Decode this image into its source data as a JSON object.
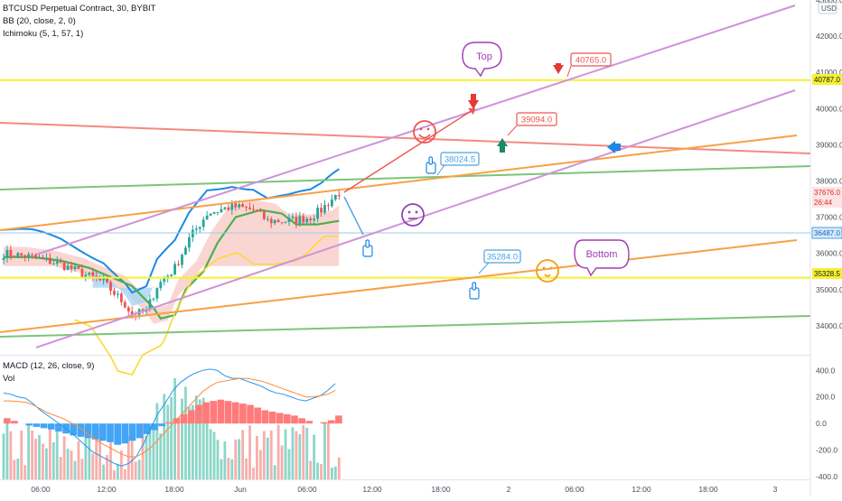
{
  "header": {
    "symbol": "BTCUSD Perpetual Contract, 30, BYBIT",
    "bb": "BB (20, close, 2, 0)",
    "ichimoku": "Ichimoku (5, 1, 57, 1)"
  },
  "lower": {
    "macd": "MACD (12, 26, close, 9)",
    "vol": "Vol"
  },
  "currency": "USD",
  "colors": {
    "up": "#26a69a",
    "down": "#ef5350",
    "bb": "#1e88e5",
    "baseline": "#4caf50",
    "lag": "#fdd835",
    "cloud_up": "#f8c4c0",
    "cloud_dn": "#a8d4f5",
    "channel": "#ce93d8",
    "support": "#f7a144",
    "resist": "#f28b82",
    "green": "#7cc47c",
    "yellow": "#f5f132",
    "blue": "#4aa3df",
    "macd_pos": "#ff7b7b",
    "macd_neg": "#42a5f5"
  },
  "chart_data": {
    "type": "candlestick",
    "ylim": [
      33200,
      43000
    ],
    "y_ticks": [
      "43000.0",
      "42000.0",
      "41000.0",
      "40000.0",
      "39000.0",
      "38000.0",
      "37000.0",
      "36000.0",
      "35000.0",
      "34000.0"
    ],
    "x_ticks": [
      "06:00",
      "12:00",
      "18:00",
      "Jun",
      "06:00",
      "12:00",
      "18:00",
      "2",
      "06:00",
      "12:00",
      "18:00",
      "3"
    ],
    "price_tags": [
      {
        "value": "40787.0",
        "style": "yellow"
      },
      {
        "value": "37676.0",
        "style": "pink"
      },
      {
        "value": "26:44",
        "style": "pink"
      },
      {
        "value": "36487.0",
        "style": "blue"
      },
      {
        "value": "35328.5",
        "style": "yellow"
      }
    ],
    "annotations": {
      "top": "Top",
      "bottom": "Bottom",
      "p40765": "40765.0",
      "p39094": "39094.0",
      "p38024": "38024.5",
      "p35284": "35284.0"
    },
    "macd_ticks": [
      "400.0",
      "200.0",
      "0.0",
      "-200.0",
      "-400.0"
    ],
    "macd_ylim": [
      -420,
      470
    ],
    "macd_hist": [
      40,
      20,
      0,
      -15,
      -25,
      -35,
      -45,
      -60,
      -75,
      -90,
      -100,
      -110,
      -120,
      -130,
      -140,
      -160,
      -150,
      -130,
      -110,
      -80,
      -50,
      -20,
      10,
      40,
      70,
      100,
      140,
      160,
      170,
      180,
      170,
      160,
      150,
      140,
      120,
      100,
      90,
      80,
      70,
      60,
      40,
      20,
      0,
      10,
      25,
      60
    ],
    "macd_line": [
      230,
      220,
      200,
      190,
      150,
      100,
      60,
      20,
      -20,
      -60,
      -110,
      -160,
      -210,
      -240,
      -270,
      -300,
      -320,
      -300,
      -250,
      -150,
      -30,
      80,
      160,
      250,
      310,
      350,
      380,
      400,
      410,
      400,
      360,
      340,
      340,
      320,
      300,
      280,
      250,
      230,
      220,
      200,
      180,
      170,
      190,
      210,
      250,
      300
    ],
    "signal_line": [
      170,
      170,
      165,
      160,
      140,
      110,
      80,
      60,
      40,
      10,
      -20,
      -60,
      -100,
      -140,
      -170,
      -200,
      -230,
      -250,
      -250,
      -220,
      -180,
      -120,
      -60,
      0,
      60,
      120,
      180,
      240,
      280,
      310,
      320,
      330,
      340,
      340,
      330,
      320,
      300,
      280,
      260,
      240,
      220,
      200,
      200,
      210,
      220,
      250
    ]
  }
}
